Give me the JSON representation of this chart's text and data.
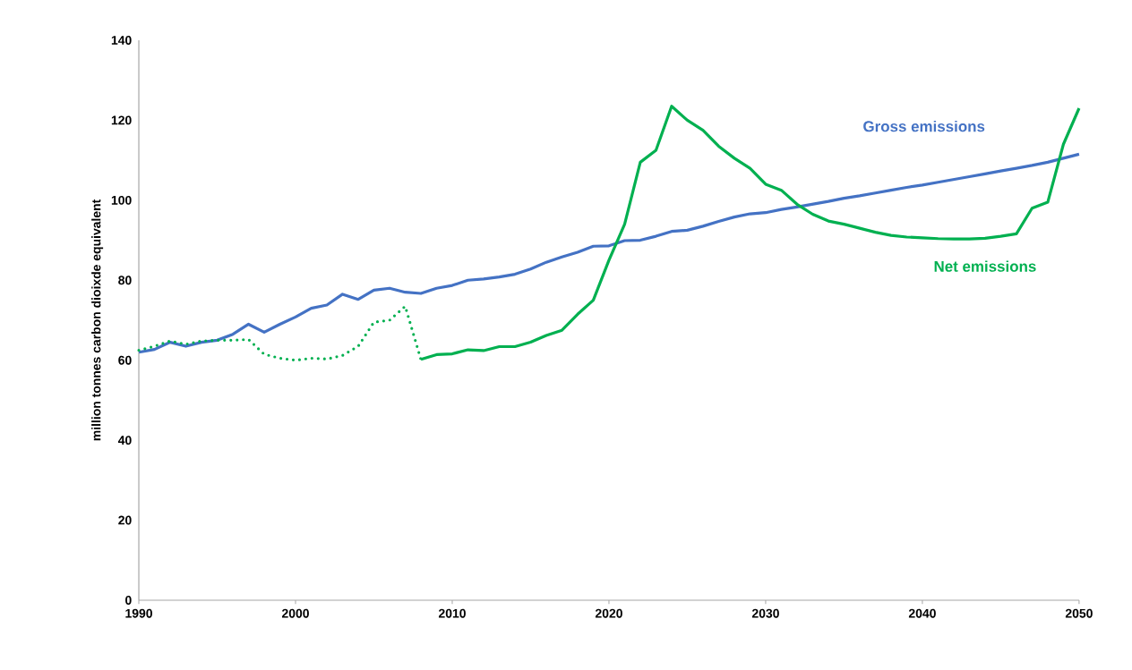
{
  "chart_data": {
    "type": "line",
    "ylabel": "million tonnes carbon dioixde equivalent",
    "xlim": [
      1990,
      2050
    ],
    "xticks": [
      1990,
      2000,
      2010,
      2020,
      2030,
      2040,
      2050
    ],
    "ylim": [
      0,
      140
    ],
    "yticks": [
      0,
      20,
      40,
      60,
      80,
      100,
      120,
      140
    ],
    "grid": false,
    "marker": "none",
    "series": [
      {
        "name": "Gross emissions",
        "color": "#4472c4",
        "line_style": "solid",
        "x": [
          1990,
          1991,
          1992,
          1993,
          1994,
          1995,
          1996,
          1997,
          1998,
          1999,
          2000,
          2001,
          2002,
          2003,
          2004,
          2005,
          2006,
          2007,
          2008,
          2009,
          2010,
          2011,
          2012,
          2013,
          2014,
          2015,
          2016,
          2017,
          2018,
          2019,
          2020,
          2021,
          2022,
          2023,
          2024,
          2025,
          2026,
          2027,
          2028,
          2029,
          2030,
          2031,
          2032,
          2033,
          2034,
          2035,
          2036,
          2037,
          2038,
          2039,
          2040,
          2041,
          2042,
          2043,
          2044,
          2045,
          2046,
          2047,
          2048,
          2049,
          2050
        ],
        "values": [
          62,
          62.7,
          64.5,
          63.5,
          64.5,
          65,
          66.5,
          69,
          67,
          69,
          70.8,
          73,
          73.8,
          76.5,
          75.2,
          77.5,
          78,
          77,
          76.7,
          78,
          78.7,
          80,
          80.3,
          80.8,
          81.5,
          82.8,
          84.5,
          85.8,
          87,
          88.5,
          88.6,
          89.9,
          90,
          91,
          92.2,
          92.5,
          93.5,
          94.7,
          95.8,
          96.6,
          96.9,
          97.7,
          98.3,
          99,
          99.7,
          100.5,
          101.1,
          101.8,
          102.5,
          103.2,
          103.8,
          104.5,
          105.2,
          105.9,
          106.6,
          107.3,
          108,
          108.7,
          109.5,
          110.5,
          111.5
        ]
      },
      {
        "color": "#00b050",
        "line_style": "dotted",
        "x": [
          1990,
          1991,
          1992,
          1993,
          1994,
          1995,
          1996,
          1997,
          1998,
          1999,
          2000,
          2001,
          2002,
          2003,
          2004,
          2005,
          2006,
          2007,
          2008
        ],
        "values": [
          62.5,
          63.5,
          64.8,
          64,
          64.8,
          65,
          65,
          65.2,
          61.5,
          60.5,
          60,
          60.5,
          60.3,
          61.2,
          63.5,
          69.5,
          70,
          73.5,
          60.2
        ]
      },
      {
        "name": "Net emissions",
        "color": "#00b050",
        "line_style": "solid",
        "x": [
          2008,
          2009,
          2010,
          2011,
          2012,
          2013,
          2014,
          2015,
          2016,
          2017,
          2018,
          2019,
          2020,
          2021,
          2022,
          2023,
          2024,
          2025,
          2026,
          2027,
          2028,
          2029,
          2030,
          2031,
          2032,
          2033,
          2034,
          2035,
          2036,
          2037,
          2038,
          2039,
          2040,
          2041,
          2042,
          2043,
          2044,
          2045,
          2046,
          2047,
          2048,
          2049,
          2050
        ],
        "values": [
          60.2,
          61.4,
          61.6,
          62.6,
          62.4,
          63.4,
          63.4,
          64.5,
          66.2,
          67.5,
          71.5,
          75,
          85,
          94,
          109.5,
          112.5,
          123.5,
          120,
          117.5,
          113.5,
          110.5,
          108,
          104,
          102.5,
          99,
          96.5,
          94.8,
          94,
          93,
          92,
          91.2,
          90.8,
          90.6,
          90.4,
          90.3,
          90.3,
          90.5,
          91,
          91.6,
          98,
          99.5,
          114,
          123
        ]
      }
    ]
  }
}
